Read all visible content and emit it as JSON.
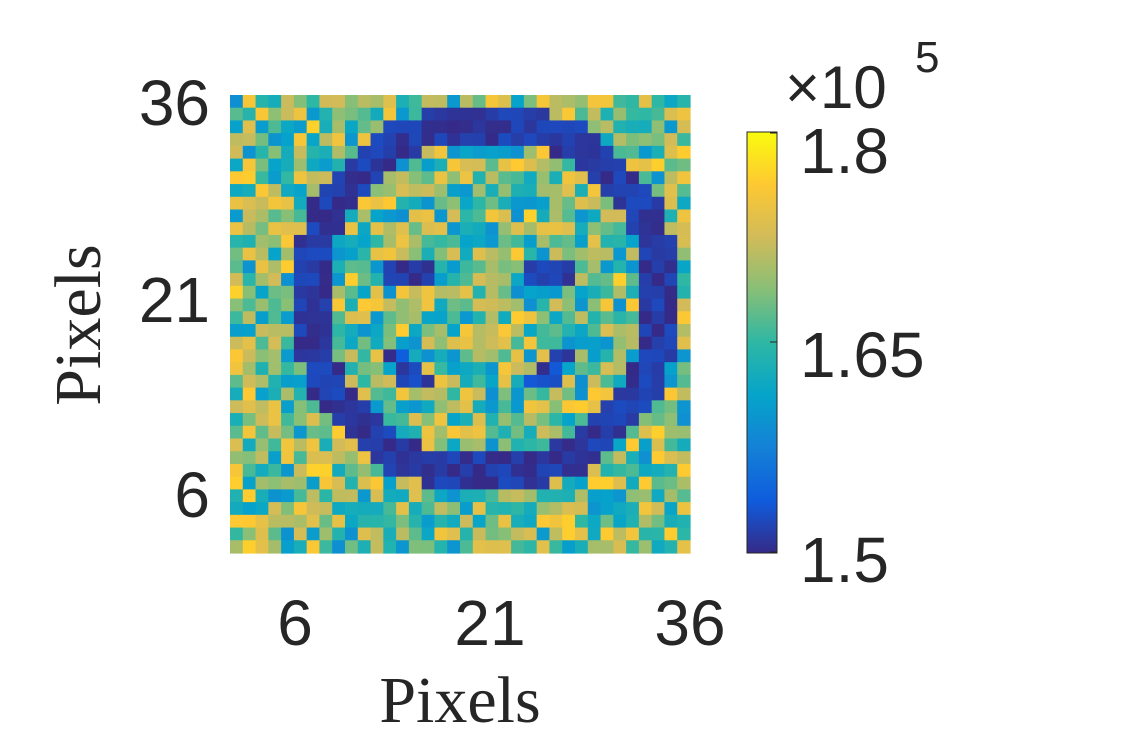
{
  "chart_data": {
    "type": "heatmap",
    "title": "",
    "xlabel": "Pixels",
    "ylabel": "Pixels",
    "grid_size": [
      36,
      36
    ],
    "xlim": [
      1,
      36
    ],
    "ylim": [
      1,
      36
    ],
    "x_ticks": [
      "6",
      "21",
      "36"
    ],
    "y_ticks": [
      "36",
      "21",
      "6"
    ],
    "colormap": "parula",
    "grid": false,
    "colorbar": {
      "range": [
        150000,
        180000
      ],
      "tick_labels": [
        "1.8",
        "1.65",
        "1.5"
      ],
      "exponent_label": "×10",
      "exponent_power": "5"
    },
    "pattern": {
      "description_values": {
        "background_mean": 168000,
        "background_noise": 9000,
        "ring_value": 151000,
        "ring_center": [
          20.5,
          20.5
        ],
        "ring_inner_radius": 12.5,
        "ring_outer_radius": 15.5,
        "eyes": [
          [
            14.5,
            22.5,
            2.5,
            1.4
          ],
          [
            25.5,
            22.5,
            2.5,
            1.4
          ]
        ],
        "mouth_center": [
          20,
          16
        ],
        "mouth_radius": 7,
        "mouth_value": 152000
      }
    }
  }
}
